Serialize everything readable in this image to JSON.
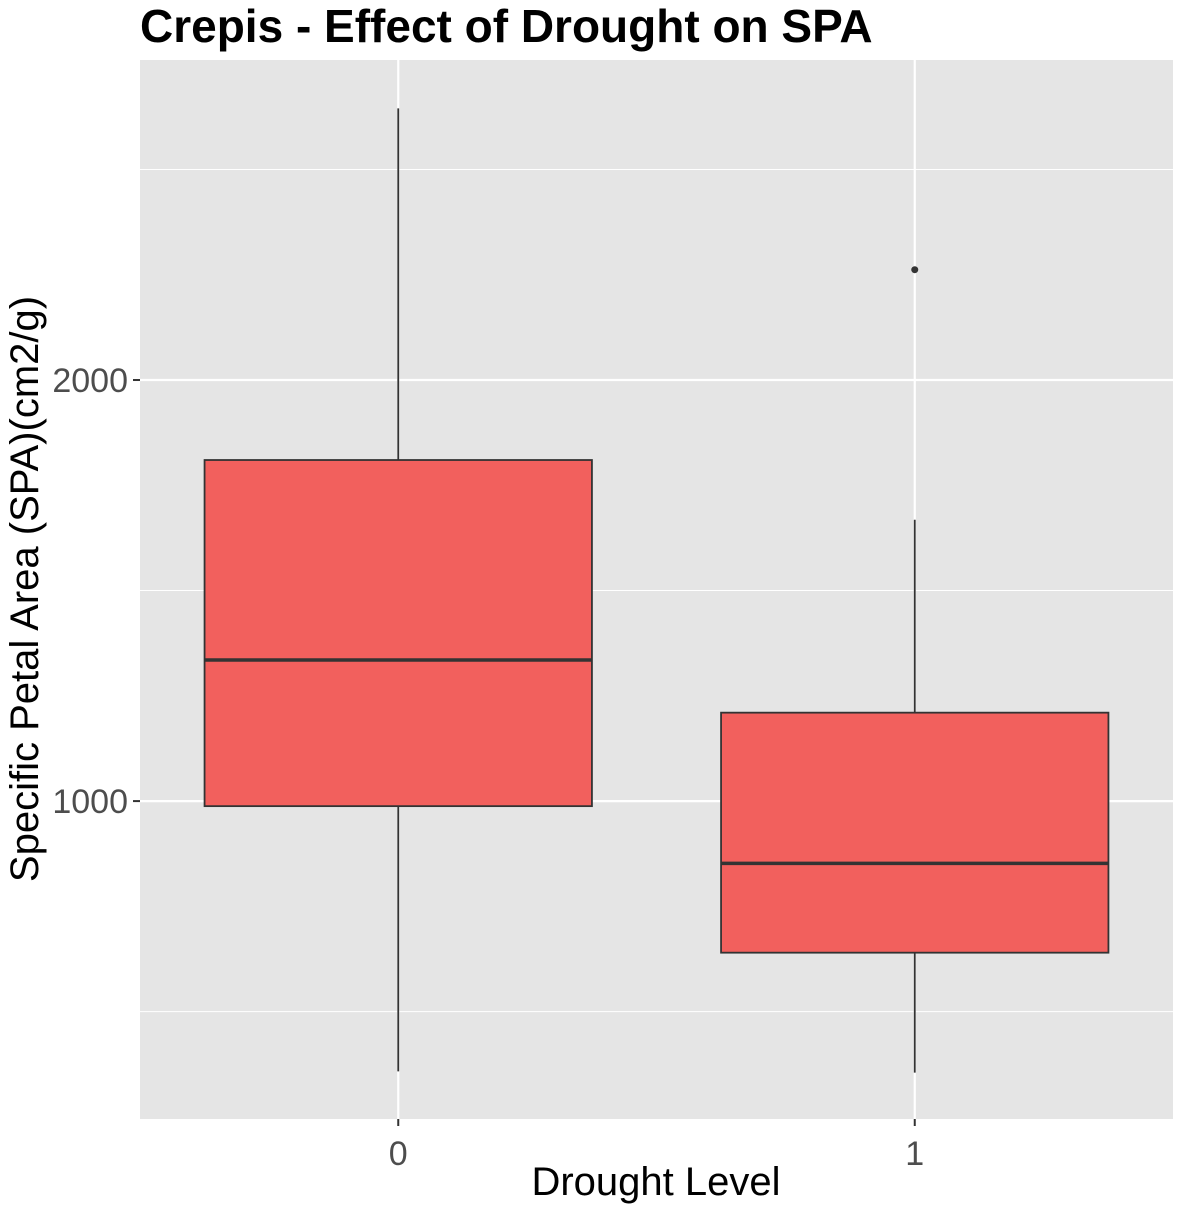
{
  "chart_data": {
    "type": "boxplot",
    "title": "Crepis - Effect of Drought on SPA",
    "xlabel": "Drought Level",
    "ylabel": "Specific Petal Area (SPA)(cm2/g)",
    "categories": [
      "0",
      "1"
    ],
    "ylim": [
      245,
      2760
    ],
    "yticks": [
      1000,
      2000
    ],
    "grid": true,
    "boxes": [
      {
        "category": "0",
        "whisker_low": 358,
        "q1": 988,
        "median": 1335,
        "q3": 1810,
        "whisker_high": 2645,
        "outliers": []
      },
      {
        "category": "1",
        "whisker_low": 355,
        "q1": 640,
        "median": 852,
        "q3": 1210,
        "whisker_high": 1668,
        "outliers": [
          2262
        ]
      }
    ],
    "colors": {
      "panel_background": "#e5e5e5",
      "grid": "#ffffff",
      "box_fill": "#f2605d",
      "box_line": "#333333"
    }
  }
}
